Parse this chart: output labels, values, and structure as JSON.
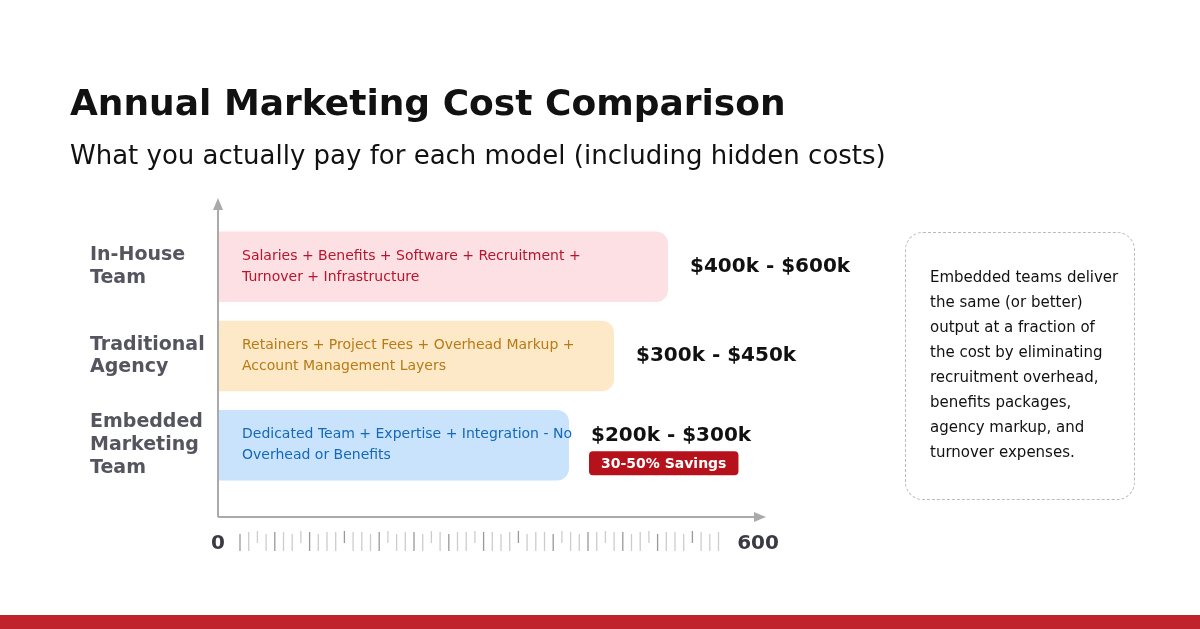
{
  "chart_data": {
    "type": "bar",
    "orientation": "horizontal",
    "title": "Annual Marketing Cost Comparison",
    "subtitle": "What you actually pay for each model (including hidden costs)",
    "categories": [
      "In-House Team",
      "Traditional Agency",
      "Embedded Marketing Team"
    ],
    "values": [
      500,
      440,
      390
    ],
    "colors": [
      "#fde0e4",
      "#fde9c8",
      "#c9e3fc"
    ],
    "xlim": [
      0,
      600
    ],
    "xticks": [
      0,
      600
    ],
    "grid": false,
    "legend": false,
    "annotations": [
      "Salaries + Benefits + Software + Recruitment + Turnover + Infrastructure",
      "Retainers + Project Fees + Overhead Markup + Account Management Layers",
      "Dedicated Team + Expertise + Integration - No Overhead or Benefits",
      {
        "text": "$400k - $600k",
        "x": 500,
        "y": "In-House Team"
      },
      {
        "text": "$300k - $450k",
        "x": 440,
        "y": "Traditional Agency"
      },
      {
        "text": "$200k - $300k",
        "x": 390,
        "y": "Embedded Marketing Team"
      },
      {
        "text": "30-50% Savings",
        "x": 390,
        "y": "Embedded Marketing Team"
      },
      "Embedded teams deliver the same (or better) output at a fraction of the cost by eliminating recruitment overhead, benefits packages, agency markup, and turnover expenses."
    ]
  }
}
